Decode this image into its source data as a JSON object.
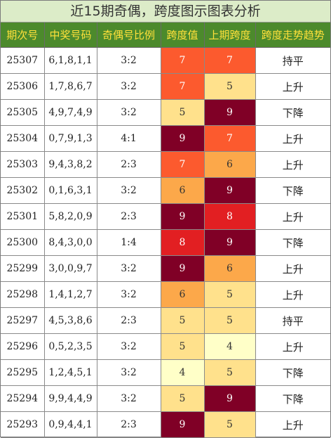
{
  "title": "近15期奇偶，跨度图示图表分析",
  "headers": [
    "期次号",
    "中奖号码",
    "奇偶号比例",
    "跨度值",
    "上期跨度",
    "跨度走势趋势"
  ],
  "colors": {
    "title_bg": "#dcecc8",
    "header_bg": "#4c8a2c",
    "header_text": "#ffe03a",
    "span_4": "#ffffc8",
    "span_5": "#ffe18c",
    "span_6": "#fca84a",
    "span_7": "#fc5a2e",
    "span_8": "#e21f22",
    "span_9": "#800026"
  },
  "rows": [
    {
      "issue": "25307",
      "numbers": "6,1,8,1,1",
      "ratio": "3:2",
      "span": "7",
      "prev_span": "7",
      "trend": "持平"
    },
    {
      "issue": "25306",
      "numbers": "1,7,8,6,7",
      "ratio": "3:2",
      "span": "7",
      "prev_span": "5",
      "trend": "上升"
    },
    {
      "issue": "25305",
      "numbers": "4,9,7,4,9",
      "ratio": "3:2",
      "span": "5",
      "prev_span": "9",
      "trend": "下降"
    },
    {
      "issue": "25304",
      "numbers": "0,7,9,1,3",
      "ratio": "4:1",
      "span": "9",
      "prev_span": "7",
      "trend": "上升"
    },
    {
      "issue": "25303",
      "numbers": "9,4,3,8,2",
      "ratio": "2:3",
      "span": "7",
      "prev_span": "6",
      "trend": "上升"
    },
    {
      "issue": "25302",
      "numbers": "0,1,6,3,1",
      "ratio": "3:2",
      "span": "6",
      "prev_span": "9",
      "trend": "下降"
    },
    {
      "issue": "25301",
      "numbers": "5,8,2,0,9",
      "ratio": "2:3",
      "span": "9",
      "prev_span": "8",
      "trend": "上升"
    },
    {
      "issue": "25300",
      "numbers": "8,4,3,0,0",
      "ratio": "1:4",
      "span": "8",
      "prev_span": "9",
      "trend": "下降"
    },
    {
      "issue": "25299",
      "numbers": "3,0,0,9,7",
      "ratio": "3:2",
      "span": "9",
      "prev_span": "6",
      "trend": "上升"
    },
    {
      "issue": "25298",
      "numbers": "1,4,1,2,7",
      "ratio": "3:2",
      "span": "6",
      "prev_span": "5",
      "trend": "上升"
    },
    {
      "issue": "25297",
      "numbers": "4,5,3,8,6",
      "ratio": "2:3",
      "span": "5",
      "prev_span": "5",
      "trend": "持平"
    },
    {
      "issue": "25296",
      "numbers": "0,5,2,3,5",
      "ratio": "3:2",
      "span": "5",
      "prev_span": "4",
      "trend": "上升"
    },
    {
      "issue": "25295",
      "numbers": "1,2,4,5,1",
      "ratio": "3:2",
      "span": "4",
      "prev_span": "5",
      "trend": "下降"
    },
    {
      "issue": "25294",
      "numbers": "9,9,4,4,9",
      "ratio": "3:2",
      "span": "5",
      "prev_span": "9",
      "trend": "下降"
    },
    {
      "issue": "25293",
      "numbers": "0,9,4,4,1",
      "ratio": "2:3",
      "span": "9",
      "prev_span": "5",
      "trend": "上升"
    }
  ]
}
